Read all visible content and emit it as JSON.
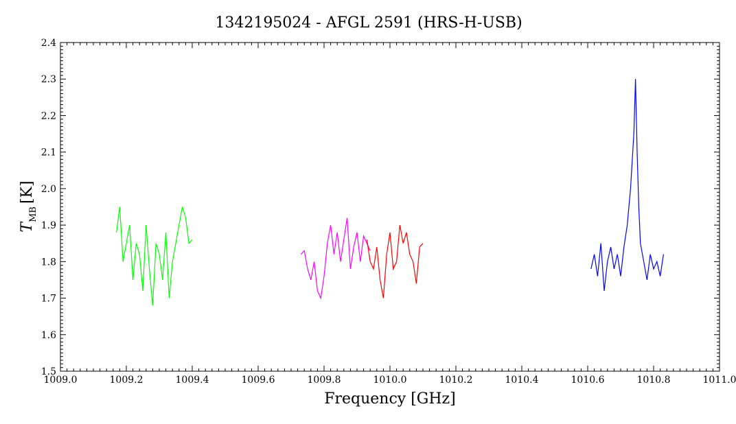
{
  "chart_data": {
    "type": "line",
    "title": "1342195024 - AFGL 2591 (HRS-H-USB)",
    "xlabel": "Frequency [GHz]",
    "ylabel": {
      "main": "T",
      "sub": "MB",
      "unit": "[K]"
    },
    "xlim": [
      1009.0,
      1011.0
    ],
    "ylim": [
      1.5,
      2.4
    ],
    "xticks": [
      "1009.0",
      "1009.2",
      "1009.4",
      "1009.6",
      "1009.8",
      "1010.0",
      "1010.2",
      "1010.4",
      "1010.6",
      "1010.8",
      "1011.0"
    ],
    "yticks": [
      "1.5",
      "1.6",
      "1.7",
      "1.8",
      "1.9",
      "2.0",
      "2.1",
      "2.2",
      "2.3",
      "2.4"
    ],
    "grid": false,
    "series": [
      {
        "color": "#00ff00",
        "x": [
          1009.17,
          1009.18,
          1009.19,
          1009.2,
          1009.21,
          1009.22,
          1009.23,
          1009.24,
          1009.25,
          1009.26,
          1009.27,
          1009.28,
          1009.29,
          1009.3,
          1009.31,
          1009.32,
          1009.33,
          1009.34,
          1009.35,
          1009.36,
          1009.37,
          1009.38,
          1009.39,
          1009.4
        ],
        "y": [
          1.88,
          1.95,
          1.8,
          1.85,
          1.9,
          1.75,
          1.85,
          1.82,
          1.72,
          1.9,
          1.78,
          1.68,
          1.85,
          1.82,
          1.75,
          1.88,
          1.7,
          1.8,
          1.85,
          1.9,
          1.95,
          1.92,
          1.85,
          1.86
        ]
      },
      {
        "color": "#ff00ff",
        "x": [
          1009.73,
          1009.74,
          1009.75,
          1009.76,
          1009.77,
          1009.78,
          1009.79,
          1009.8,
          1009.81,
          1009.82,
          1009.83,
          1009.84,
          1009.85,
          1009.86,
          1009.87,
          1009.88,
          1009.89,
          1009.9,
          1009.91,
          1009.92,
          1009.93,
          1009.94
        ],
        "y": [
          1.82,
          1.83,
          1.78,
          1.75,
          1.8,
          1.72,
          1.7,
          1.76,
          1.85,
          1.9,
          1.82,
          1.88,
          1.8,
          1.86,
          1.92,
          1.78,
          1.84,
          1.88,
          1.8,
          1.87,
          1.85,
          1.83
        ]
      },
      {
        "color": "#ff0000",
        "x": [
          1009.93,
          1009.94,
          1009.95,
          1009.96,
          1009.97,
          1009.98,
          1009.99,
          1010.0,
          1010.01,
          1010.02,
          1010.03,
          1010.04,
          1010.05,
          1010.06,
          1010.07,
          1010.08,
          1010.09,
          1010.1
        ],
        "y": [
          1.86,
          1.8,
          1.78,
          1.84,
          1.75,
          1.7,
          1.82,
          1.88,
          1.78,
          1.8,
          1.9,
          1.85,
          1.88,
          1.82,
          1.8,
          1.74,
          1.84,
          1.85
        ]
      },
      {
        "color": "#0000ff",
        "x": [
          1010.61,
          1010.62,
          1010.63,
          1010.64,
          1010.65,
          1010.66,
          1010.67,
          1010.68,
          1010.69,
          1010.7,
          1010.71,
          1010.72,
          1010.73,
          1010.74,
          1010.745,
          1010.75,
          1010.755,
          1010.76,
          1010.77,
          1010.78,
          1010.79,
          1010.8,
          1010.81,
          1010.82,
          1010.83
        ],
        "y": [
          1.78,
          1.82,
          1.76,
          1.85,
          1.72,
          1.8,
          1.84,
          1.78,
          1.82,
          1.76,
          1.84,
          1.9,
          2.0,
          2.15,
          2.3,
          2.1,
          1.95,
          1.85,
          1.8,
          1.75,
          1.82,
          1.78,
          1.8,
          1.76,
          1.82
        ]
      }
    ]
  }
}
